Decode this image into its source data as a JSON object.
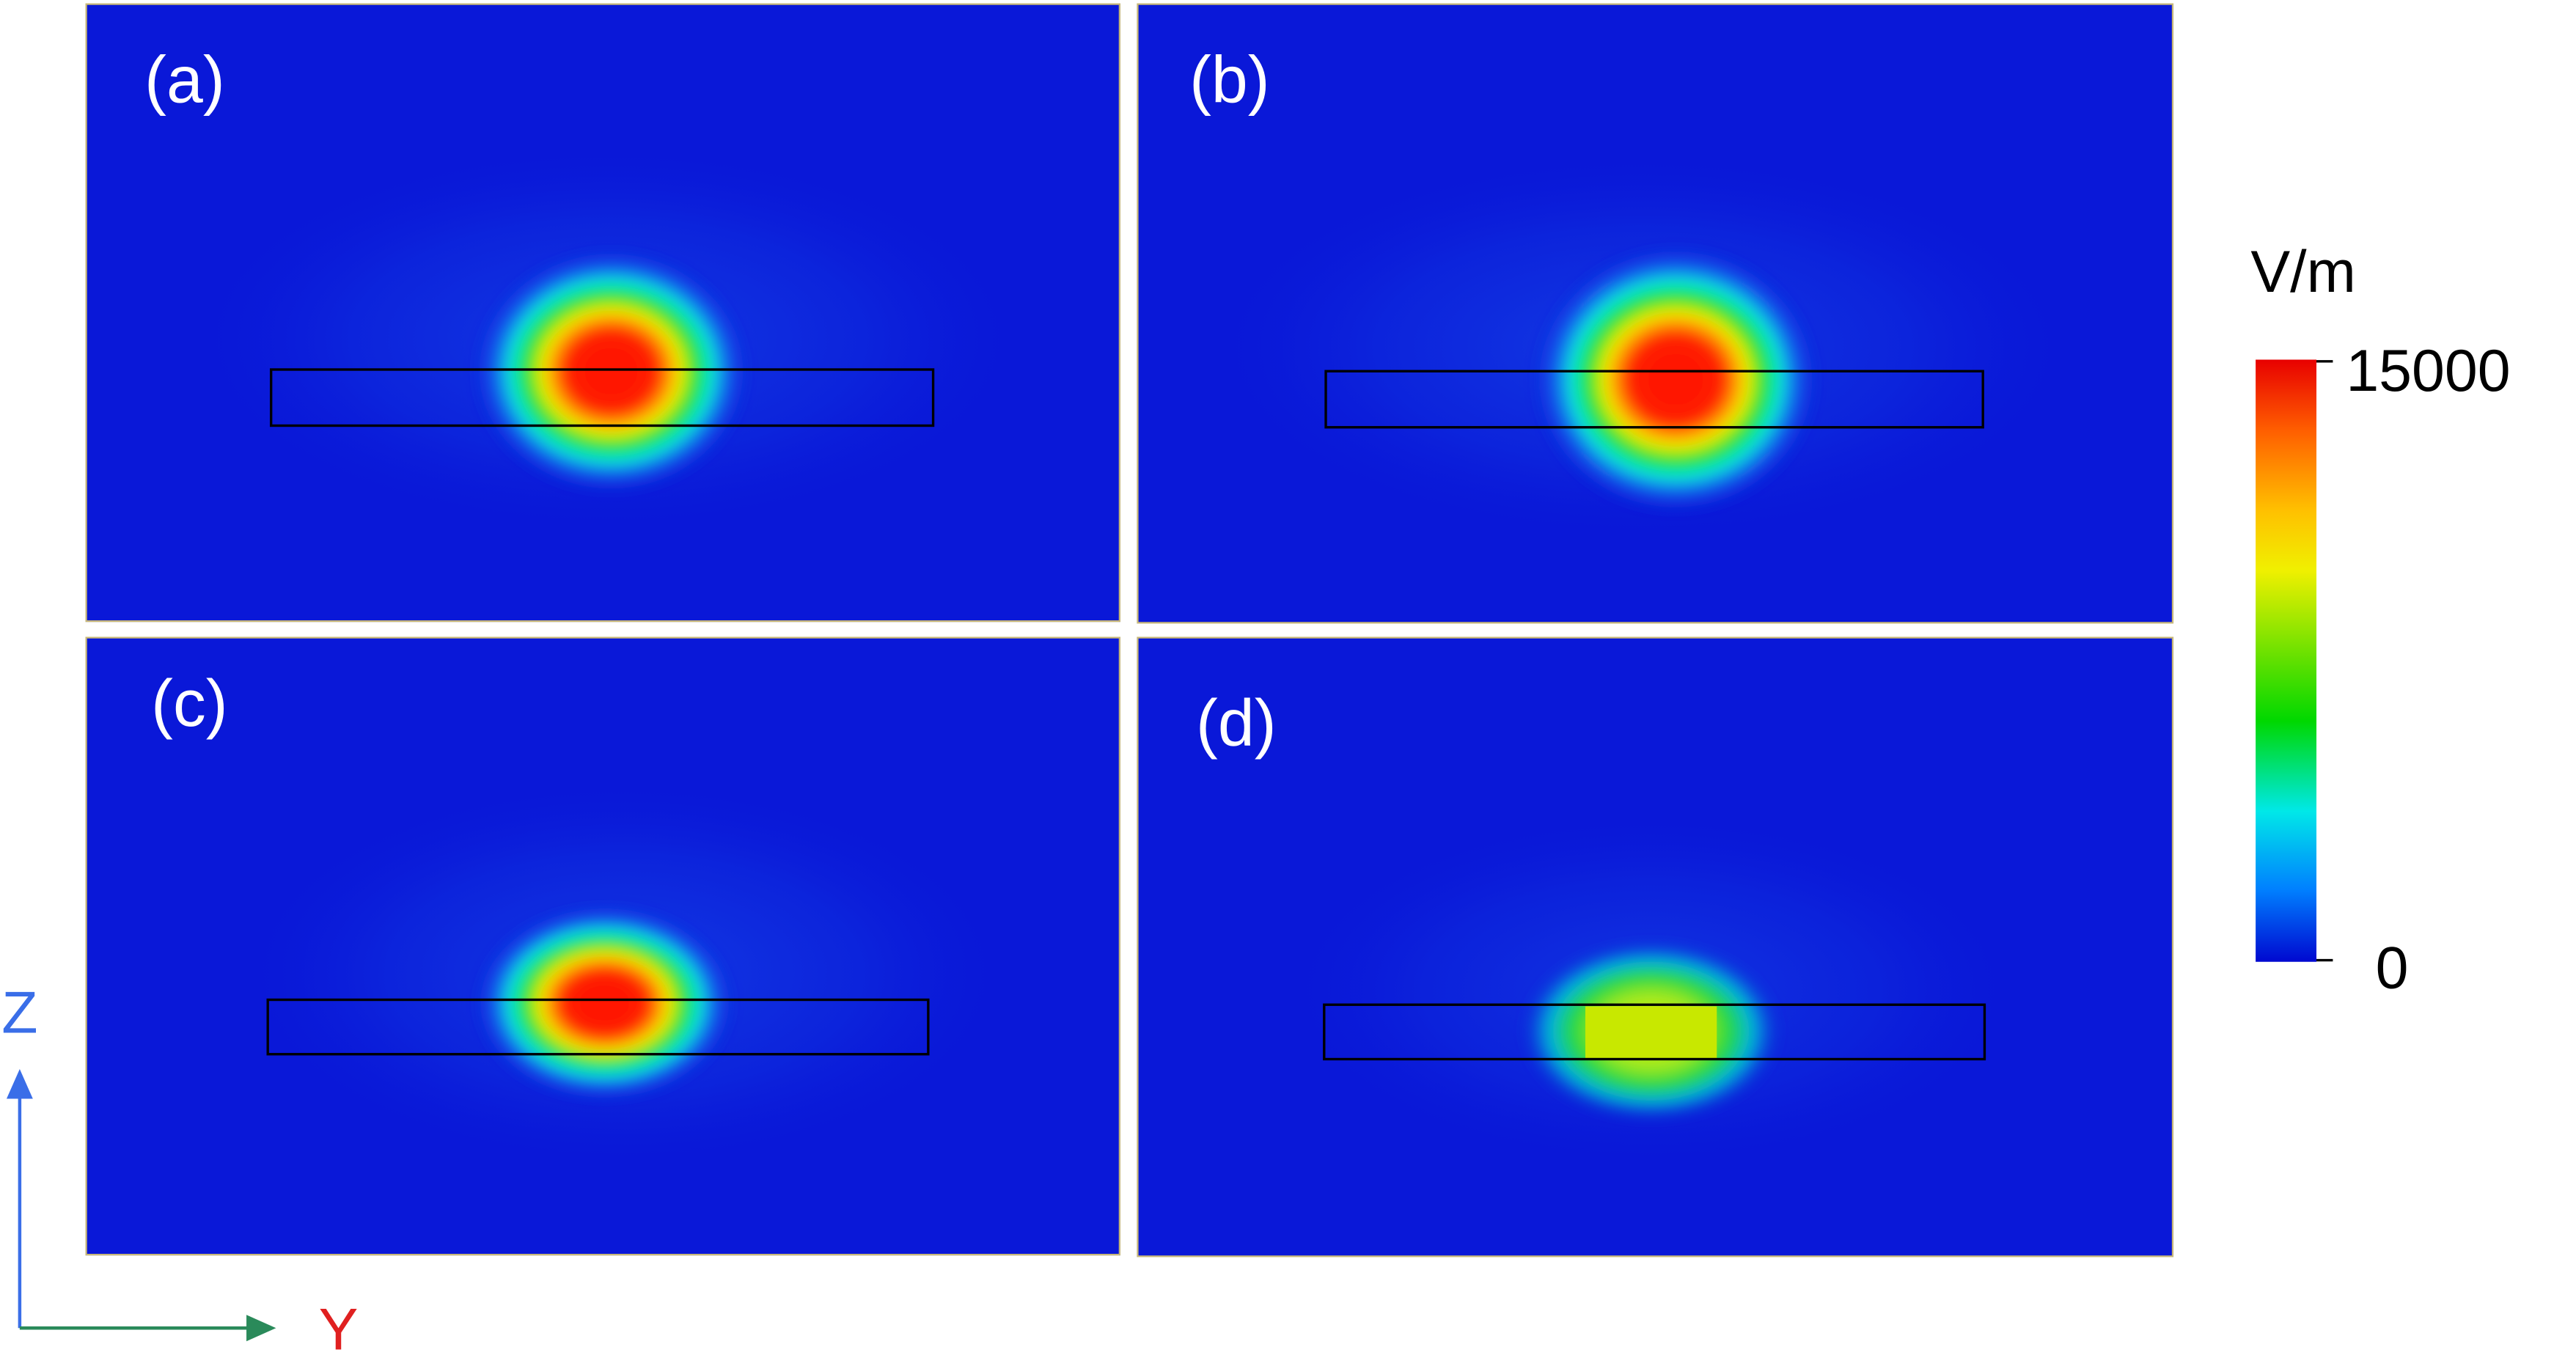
{
  "panels": [
    {
      "label": "(a)"
    },
    {
      "label": "(b)"
    },
    {
      "label": "(c)"
    },
    {
      "label": "(d)"
    }
  ],
  "colorbar": {
    "unit": "V/m",
    "max": 15000,
    "min": 0
  },
  "axes": {
    "vertical": "Z",
    "horizontal": "Y"
  }
}
